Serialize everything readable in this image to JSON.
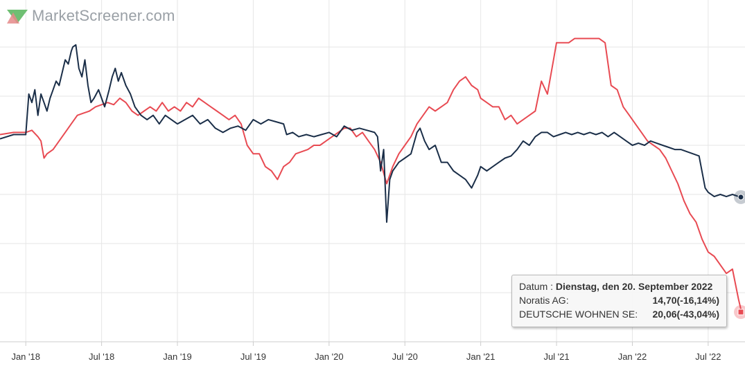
{
  "brand": {
    "name": "MarketScreener.com"
  },
  "chart_data": {
    "type": "line",
    "x_tick_labels": [
      "Jan '18",
      "Jul '18",
      "Jan '19",
      "Jul '19",
      "Jan '20",
      "Jul '20",
      "Jan '21",
      "Jul '21",
      "Jan '22",
      "Jul '22"
    ],
    "grid": true,
    "series": [
      {
        "name": "Noratis AG",
        "color": "#1a2e48",
        "points": [
          [
            2017.83,
            -2.5
          ],
          [
            2017.92,
            -1.5
          ],
          [
            2018.0,
            -1.5
          ],
          [
            2018.02,
            8
          ],
          [
            2018.04,
            6
          ],
          [
            2018.06,
            9
          ],
          [
            2018.08,
            3
          ],
          [
            2018.1,
            8
          ],
          [
            2018.12,
            6
          ],
          [
            2018.14,
            4
          ],
          [
            2018.16,
            7
          ],
          [
            2018.18,
            9
          ],
          [
            2018.2,
            11
          ],
          [
            2018.22,
            10
          ],
          [
            2018.24,
            13
          ],
          [
            2018.26,
            16
          ],
          [
            2018.28,
            15
          ],
          [
            2018.3,
            18
          ],
          [
            2018.31,
            19
          ],
          [
            2018.33,
            19.5
          ],
          [
            2018.35,
            14
          ],
          [
            2018.37,
            12
          ],
          [
            2018.39,
            16
          ],
          [
            2018.41,
            10
          ],
          [
            2018.43,
            6
          ],
          [
            2018.45,
            7
          ],
          [
            2018.48,
            9
          ],
          [
            2018.5,
            7
          ],
          [
            2018.52,
            5
          ],
          [
            2018.55,
            9
          ],
          [
            2018.57,
            12
          ],
          [
            2018.59,
            14
          ],
          [
            2018.61,
            11
          ],
          [
            2018.63,
            13
          ],
          [
            2018.66,
            10
          ],
          [
            2018.69,
            8
          ],
          [
            2018.72,
            5
          ],
          [
            2018.76,
            3
          ],
          [
            2018.8,
            2
          ],
          [
            2018.84,
            3
          ],
          [
            2018.88,
            1
          ],
          [
            2018.92,
            3
          ],
          [
            2018.96,
            2
          ],
          [
            2019.0,
            1
          ],
          [
            2019.05,
            2
          ],
          [
            2019.1,
            3
          ],
          [
            2019.15,
            1
          ],
          [
            2019.2,
            2
          ],
          [
            2019.25,
            0
          ],
          [
            2019.3,
            -1
          ],
          [
            2019.35,
            0
          ],
          [
            2019.4,
            0.5
          ],
          [
            2019.45,
            -0.5
          ],
          [
            2019.5,
            2
          ],
          [
            2019.55,
            1
          ],
          [
            2019.6,
            2
          ],
          [
            2019.65,
            1.5
          ],
          [
            2019.7,
            1
          ],
          [
            2019.72,
            -1.5
          ],
          [
            2019.76,
            -1
          ],
          [
            2019.8,
            -2
          ],
          [
            2019.85,
            -1.5
          ],
          [
            2019.9,
            -2
          ],
          [
            2019.95,
            -1.5
          ],
          [
            2020.0,
            -1
          ],
          [
            2020.05,
            -2
          ],
          [
            2020.1,
            0.5
          ],
          [
            2020.15,
            -0.5
          ],
          [
            2020.2,
            0
          ],
          [
            2020.25,
            -0.5
          ],
          [
            2020.3,
            -1
          ],
          [
            2020.32,
            -2
          ],
          [
            2020.34,
            -10
          ],
          [
            2020.36,
            -5
          ],
          [
            2020.38,
            -22
          ],
          [
            2020.4,
            -12
          ],
          [
            2020.42,
            -10
          ],
          [
            2020.46,
            -8
          ],
          [
            2020.5,
            -7
          ],
          [
            2020.54,
            -6
          ],
          [
            2020.58,
            -1
          ],
          [
            2020.6,
            0
          ],
          [
            2020.63,
            -3
          ],
          [
            2020.66,
            -5
          ],
          [
            2020.7,
            -4
          ],
          [
            2020.74,
            -8
          ],
          [
            2020.78,
            -8
          ],
          [
            2020.82,
            -10
          ],
          [
            2020.86,
            -11
          ],
          [
            2020.9,
            -12
          ],
          [
            2020.94,
            -14
          ],
          [
            2020.98,
            -11
          ],
          [
            2021.0,
            -9
          ],
          [
            2021.04,
            -10
          ],
          [
            2021.08,
            -9
          ],
          [
            2021.12,
            -8
          ],
          [
            2021.16,
            -7
          ],
          [
            2021.2,
            -6.5
          ],
          [
            2021.24,
            -5
          ],
          [
            2021.28,
            -3
          ],
          [
            2021.32,
            -4
          ],
          [
            2021.36,
            -2
          ],
          [
            2021.4,
            -1
          ],
          [
            2021.44,
            -1
          ],
          [
            2021.48,
            -2
          ],
          [
            2021.52,
            -1.5
          ],
          [
            2021.56,
            -1
          ],
          [
            2021.6,
            -1.5
          ],
          [
            2021.64,
            -1
          ],
          [
            2021.68,
            -1.5
          ],
          [
            2021.72,
            -1
          ],
          [
            2021.76,
            -1.5
          ],
          [
            2021.8,
            -1
          ],
          [
            2021.84,
            -2
          ],
          [
            2021.88,
            -1
          ],
          [
            2021.92,
            -2
          ],
          [
            2021.96,
            -3
          ],
          [
            2022.0,
            -4
          ],
          [
            2022.04,
            -3.5
          ],
          [
            2022.08,
            -4
          ],
          [
            2022.12,
            -3
          ],
          [
            2022.16,
            -3.5
          ],
          [
            2022.2,
            -4
          ],
          [
            2022.24,
            -4.5
          ],
          [
            2022.28,
            -5
          ],
          [
            2022.32,
            -5
          ],
          [
            2022.36,
            -5.5
          ],
          [
            2022.4,
            -6
          ],
          [
            2022.44,
            -6.5
          ],
          [
            2022.48,
            -14
          ],
          [
            2022.5,
            -15
          ],
          [
            2022.54,
            -16
          ],
          [
            2022.58,
            -15.5
          ],
          [
            2022.62,
            -16
          ],
          [
            2022.66,
            -15.5
          ],
          [
            2022.7,
            -16
          ],
          [
            2022.72,
            -16.14
          ]
        ]
      },
      {
        "name": "DEUTSCHE WOHNEN SE",
        "color": "#e84a52",
        "points": [
          [
            2017.83,
            -1.5
          ],
          [
            2017.92,
            -1
          ],
          [
            2018.0,
            -1
          ],
          [
            2018.04,
            -0.5
          ],
          [
            2018.08,
            -2
          ],
          [
            2018.1,
            -3
          ],
          [
            2018.12,
            -7
          ],
          [
            2018.14,
            -6
          ],
          [
            2018.18,
            -5
          ],
          [
            2018.22,
            -3
          ],
          [
            2018.26,
            -1
          ],
          [
            2018.3,
            1
          ],
          [
            2018.34,
            3
          ],
          [
            2018.38,
            3.5
          ],
          [
            2018.42,
            4
          ],
          [
            2018.46,
            5
          ],
          [
            2018.5,
            5.5
          ],
          [
            2018.54,
            6
          ],
          [
            2018.58,
            5.5
          ],
          [
            2018.62,
            7
          ],
          [
            2018.66,
            6
          ],
          [
            2018.7,
            4
          ],
          [
            2018.74,
            3
          ],
          [
            2018.78,
            4
          ],
          [
            2018.82,
            5
          ],
          [
            2018.86,
            4
          ],
          [
            2018.9,
            6
          ],
          [
            2018.94,
            4
          ],
          [
            2018.98,
            5
          ],
          [
            2019.02,
            4
          ],
          [
            2019.06,
            6
          ],
          [
            2019.1,
            5
          ],
          [
            2019.14,
            7
          ],
          [
            2019.18,
            6
          ],
          [
            2019.22,
            5
          ],
          [
            2019.26,
            4
          ],
          [
            2019.3,
            3
          ],
          [
            2019.34,
            2
          ],
          [
            2019.38,
            3
          ],
          [
            2019.42,
            1
          ],
          [
            2019.46,
            -4
          ],
          [
            2019.5,
            -6
          ],
          [
            2019.54,
            -6
          ],
          [
            2019.58,
            -9
          ],
          [
            2019.62,
            -10
          ],
          [
            2019.66,
            -12
          ],
          [
            2019.7,
            -9
          ],
          [
            2019.74,
            -8
          ],
          [
            2019.78,
            -6
          ],
          [
            2019.82,
            -5.5
          ],
          [
            2019.86,
            -5
          ],
          [
            2019.9,
            -4
          ],
          [
            2019.94,
            -4
          ],
          [
            2019.98,
            -3
          ],
          [
            2020.02,
            -2
          ],
          [
            2020.06,
            -1
          ],
          [
            2020.1,
            0
          ],
          [
            2020.14,
            0
          ],
          [
            2020.18,
            -2
          ],
          [
            2020.22,
            -1
          ],
          [
            2020.26,
            -3
          ],
          [
            2020.3,
            -5
          ],
          [
            2020.34,
            -8
          ],
          [
            2020.38,
            -13
          ],
          [
            2020.42,
            -9
          ],
          [
            2020.46,
            -6
          ],
          [
            2020.5,
            -4
          ],
          [
            2020.54,
            -2
          ],
          [
            2020.58,
            1
          ],
          [
            2020.62,
            3
          ],
          [
            2020.66,
            5
          ],
          [
            2020.7,
            4
          ],
          [
            2020.74,
            5
          ],
          [
            2020.78,
            6
          ],
          [
            2020.82,
            9
          ],
          [
            2020.86,
            11
          ],
          [
            2020.9,
            12
          ],
          [
            2020.94,
            10
          ],
          [
            2020.98,
            9
          ],
          [
            2021.0,
            7
          ],
          [
            2021.04,
            6
          ],
          [
            2021.08,
            5
          ],
          [
            2021.12,
            5
          ],
          [
            2021.16,
            2
          ],
          [
            2021.2,
            3
          ],
          [
            2021.24,
            1
          ],
          [
            2021.28,
            2
          ],
          [
            2021.32,
            3
          ],
          [
            2021.36,
            4
          ],
          [
            2021.4,
            11
          ],
          [
            2021.44,
            8
          ],
          [
            2021.48,
            16
          ],
          [
            2021.5,
            20
          ],
          [
            2021.54,
            20
          ],
          [
            2021.58,
            20
          ],
          [
            2021.62,
            21
          ],
          [
            2021.66,
            21
          ],
          [
            2021.7,
            21
          ],
          [
            2021.74,
            21
          ],
          [
            2021.78,
            21
          ],
          [
            2021.82,
            20
          ],
          [
            2021.86,
            10
          ],
          [
            2021.9,
            9
          ],
          [
            2021.94,
            5
          ],
          [
            2021.98,
            3
          ],
          [
            2022.02,
            1
          ],
          [
            2022.06,
            -1
          ],
          [
            2022.1,
            -3
          ],
          [
            2022.14,
            -4
          ],
          [
            2022.18,
            -5
          ],
          [
            2022.22,
            -7
          ],
          [
            2022.26,
            -10
          ],
          [
            2022.3,
            -13
          ],
          [
            2022.34,
            -17
          ],
          [
            2022.38,
            -20
          ],
          [
            2022.42,
            -22
          ],
          [
            2022.46,
            -26
          ],
          [
            2022.5,
            -29
          ],
          [
            2022.54,
            -30
          ],
          [
            2022.58,
            -32
          ],
          [
            2022.62,
            -34
          ],
          [
            2022.66,
            -33
          ],
          [
            2022.7,
            -40
          ],
          [
            2022.72,
            -43.04
          ]
        ]
      }
    ]
  },
  "tooltip": {
    "date_label": "Datum : ",
    "date_value": "Dienstag, den 20. September 2022",
    "rows": [
      {
        "label": "Noratis AG:",
        "value": "14,70(-16,14%)"
      },
      {
        "label": "DEUTSCHE WOHNEN SE:",
        "value": "20,06(-43,04%)"
      }
    ]
  },
  "colors": {
    "noratis": "#1a2e48",
    "deutsche_wohnen": "#e84a52",
    "grid": "#e6e6e6"
  }
}
